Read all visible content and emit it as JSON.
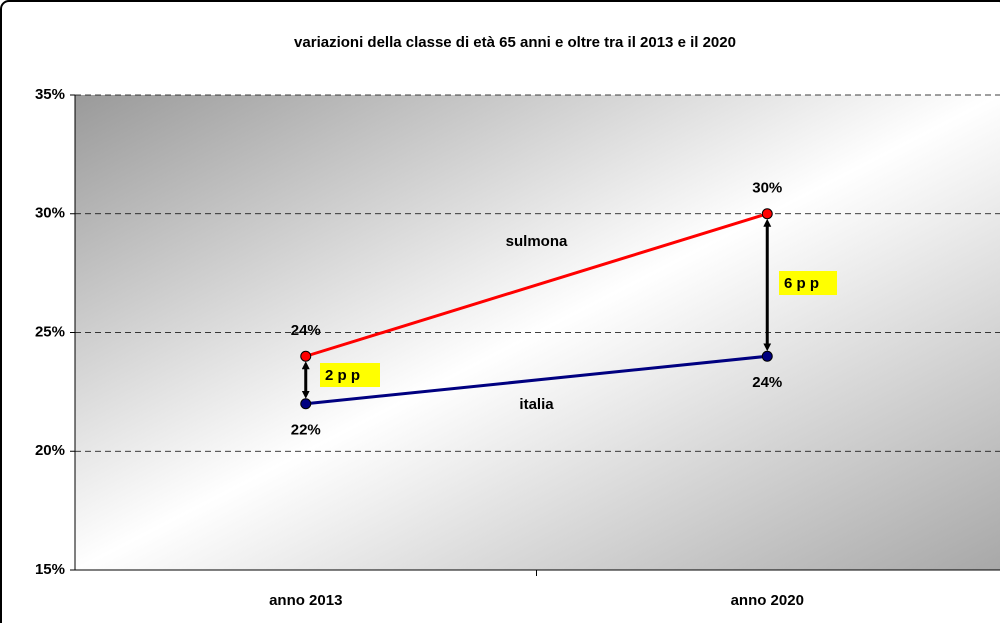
{
  "chart_data": {
    "type": "line",
    "title": "variazioni della classe di età 65 anni e oltre tra il 2013 e il 2020",
    "categories": [
      "anno 2013",
      "anno 2020"
    ],
    "series": [
      {
        "name": "sulmona",
        "color": "#ff0000",
        "values": [
          24,
          30
        ],
        "value_labels": [
          "24%",
          "30%"
        ]
      },
      {
        "name": "italia",
        "color": "#000080",
        "values": [
          22,
          24
        ],
        "value_labels": [
          "22%",
          "24%"
        ]
      }
    ],
    "annotations": [
      "2 p p",
      "6 p p"
    ],
    "ylim": [
      15,
      35
    ],
    "yticks": [
      {
        "value": 15,
        "label": "15%"
      },
      {
        "value": 20,
        "label": "20%"
      },
      {
        "value": 25,
        "label": "25%"
      },
      {
        "value": 30,
        "label": "30%"
      },
      {
        "value": 35,
        "label": "35%"
      }
    ],
    "grid": true
  }
}
